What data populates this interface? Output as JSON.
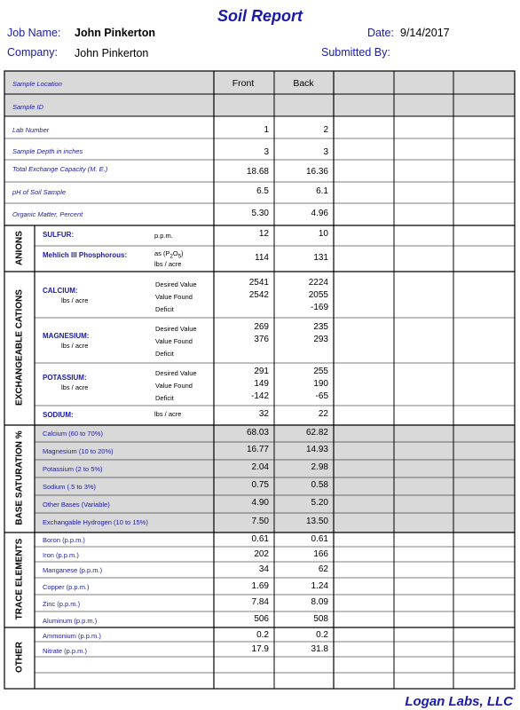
{
  "header": {
    "title": "Soil Report",
    "job_name_label": "Job Name:",
    "job_name_value": "John Pinkerton",
    "company_label": "Company:",
    "company_value": "John Pinkerton",
    "date_label": "Date:",
    "date_value": "9/14/2017",
    "submitted_label": "Submitted By:"
  },
  "columns": {
    "front": "Front",
    "back": "Back"
  },
  "rows": {
    "sample_location": "Sample Location",
    "sample_id": "Sample ID",
    "lab_number": "Lab Number",
    "lab_front": "1",
    "lab_back": "2",
    "depth": "Sample Depth in inches",
    "depth_front": "3",
    "depth_back": "3",
    "tec": "Total Exchange Capacity (M. E.)",
    "tec_front": "18.68",
    "tec_back": "16.36",
    "ph": "pH of Soil Sample",
    "ph_front": "6.5",
    "ph_back": "6.1",
    "om": "Organic Matter, Percent",
    "om_front": "5.30",
    "om_back": "4.96"
  },
  "anions": {
    "section": "ANIONS",
    "sulfur": "SULFUR:",
    "sulfur_unit": "p.p.m.",
    "sulfur_front": "12",
    "sulfur_back": "10",
    "phos": "Mehlich III Phosphorous:",
    "phos_unit_a": "as (P",
    "phos_unit_2": "2",
    "phos_unit_o": "O",
    "phos_unit_5": "5",
    "phos_unit_b": ")",
    "phos_unit_c": "lbs / acre",
    "phos_front": "114",
    "phos_back": "131"
  },
  "cations": {
    "section": "EXCHANGEABLE CATIONS",
    "desired": "Desired Value",
    "found": "Value Found",
    "deficit": "Deficit",
    "lbs": "lbs / acre",
    "calcium": "CALCIUM:",
    "calcium_vals": {
      "front": [
        "2541",
        "2542",
        ""
      ],
      "back": [
        "2224",
        "2055",
        "-169"
      ]
    },
    "magnesium": "MAGNESIUM:",
    "magnesium_vals": {
      "front": [
        "269",
        "376",
        ""
      ],
      "back": [
        "235",
        "293",
        ""
      ]
    },
    "potassium": "POTASSIUM:",
    "potassium_vals": {
      "front": [
        "291",
        "149",
        "-142"
      ],
      "back": [
        "255",
        "190",
        "-65"
      ]
    },
    "sodium": "SODIUM:",
    "sodium_unit": "lbs / acre",
    "sodium_front": "32",
    "sodium_back": "22"
  },
  "base": {
    "section": "BASE SATURATION %",
    "items": [
      {
        "label": "Calcium (60 to 70%)",
        "front": "68.03",
        "back": "62.82"
      },
      {
        "label": "Magnesium (10 to 20%)",
        "front": "16.77",
        "back": "14.93"
      },
      {
        "label": "Potassium (2 to 5%)",
        "front": "2.04",
        "back": "2.98"
      },
      {
        "label": "Sodium (.5 to 3%)",
        "front": "0.75",
        "back": "0.58"
      },
      {
        "label": "Other Bases (Variable)",
        "front": "4.90",
        "back": "5.20"
      },
      {
        "label": "Exchangable Hydrogen (10 to 15%)",
        "front": "7.50",
        "back": "13.50"
      }
    ]
  },
  "trace": {
    "section": "TRACE ELEMENTS",
    "items": [
      {
        "label": "Boron (p.p.m.)",
        "front": "0.61",
        "back": "0.61"
      },
      {
        "label": "Iron (p.p.m.)",
        "front": "202",
        "back": "166"
      },
      {
        "label": "Manganese (p.p.m.)",
        "front": "34",
        "back": "62"
      },
      {
        "label": "Copper (p.p.m.)",
        "front": "1.69",
        "back": "1.24"
      },
      {
        "label": "Zinc (p.p.m.)",
        "front": "7.84",
        "back": "8.09"
      },
      {
        "label": "Aluminum (p.p.m.)",
        "front": "506",
        "back": "508"
      }
    ]
  },
  "other": {
    "section": "OTHER",
    "items": [
      {
        "label": "Ammonium  (p.p.m.)",
        "front": "0.2",
        "back": "0.2"
      },
      {
        "label": "Nitrate  (p.p.m.)",
        "front": "17.9",
        "back": "31.8"
      }
    ]
  },
  "footer": "Logan Labs, LLC",
  "colors": {
    "label_blue": "#1a1aa6",
    "shade": "#d9d9d9"
  }
}
